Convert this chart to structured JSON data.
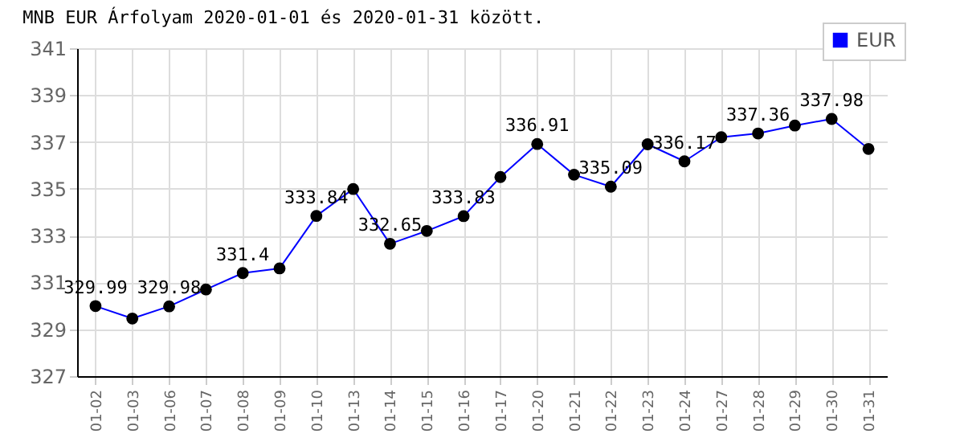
{
  "chart_data": {
    "type": "line",
    "title": "MNB EUR Árfolyam 2020-01-01 és 2020-01-31 között.",
    "categories": [
      "01-02",
      "01-03",
      "01-06",
      "01-07",
      "01-08",
      "01-09",
      "01-10",
      "01-13",
      "01-14",
      "01-15",
      "01-16",
      "01-17",
      "01-20",
      "01-21",
      "01-22",
      "01-23",
      "01-24",
      "01-27",
      "01-28",
      "01-29",
      "01-30",
      "01-31"
    ],
    "series": [
      {
        "name": "EUR",
        "color": "#0000ff",
        "values": [
          329.99,
          329.46,
          329.98,
          330.7,
          331.4,
          331.6,
          333.84,
          334.99,
          332.65,
          333.2,
          333.83,
          335.5,
          336.91,
          335.6,
          335.09,
          336.9,
          336.17,
          337.2,
          337.36,
          337.7,
          337.98,
          336.7
        ],
        "value_labels": [
          "329.99",
          null,
          "329.98",
          null,
          "331.4",
          null,
          "333.84",
          null,
          "332.65",
          null,
          "333.83",
          null,
          "336.91",
          null,
          "335.09",
          null,
          "336.17",
          null,
          "337.36",
          null,
          "337.98",
          null
        ]
      }
    ],
    "ylim": [
      327,
      341
    ],
    "yticks": [
      327,
      329,
      331,
      333,
      335,
      337,
      339,
      341
    ],
    "grid": true,
    "legend": "top right",
    "marker": "circle",
    "line_style": "solid"
  }
}
